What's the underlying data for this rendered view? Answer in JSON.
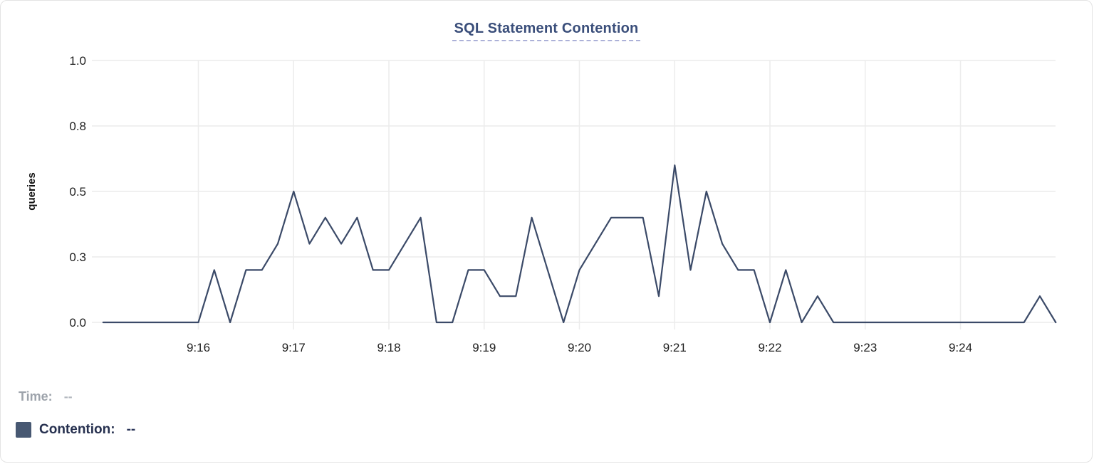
{
  "chart": {
    "title": "SQL Statement Contention"
  },
  "legend": {
    "time_label": "Time:",
    "time_value": "--",
    "series_label": "Contention:",
    "series_value": "--",
    "swatch_color": "#475872"
  },
  "colors": {
    "line": "#3b4a68",
    "grid": "#ececec",
    "title": "#3a4e7a",
    "title_underline": "#acb1d8"
  },
  "chart_data": {
    "type": "line",
    "title": "SQL Statement Contention",
    "xlabel": "",
    "ylabel": "queries",
    "ylim": [
      0,
      1.0
    ],
    "grid": true,
    "legend_position": "bottom-left",
    "y_tick_labels": [
      "0.0",
      "0.3",
      "0.5",
      "0.8",
      "1.0"
    ],
    "y_tick_values": [
      0,
      0.25,
      0.5,
      0.75,
      1.0
    ],
    "x_tick_labels": [
      "9:16",
      "9:17",
      "9:18",
      "9:19",
      "9:20",
      "9:21",
      "9:22",
      "9:23",
      "9:24"
    ],
    "x_start": "9:15:00",
    "x_end": "9:25:00",
    "sample_interval_seconds": 10,
    "series": [
      {
        "name": "Contention",
        "unit": "queries",
        "values": [
          0,
          0,
          0,
          0,
          0,
          0,
          0,
          0.2,
          0,
          0.2,
          0.2,
          0.3,
          0.5,
          0.3,
          0.4,
          0.3,
          0.4,
          0.2,
          0.2,
          0.3,
          0.4,
          0,
          0,
          0.2,
          0.2,
          0.1,
          0.1,
          0.4,
          0.2,
          0,
          0.2,
          0.3,
          0.4,
          0.4,
          0.4,
          0.1,
          0.6,
          0.2,
          0.5,
          0.3,
          0.2,
          0.2,
          0,
          0.2,
          0,
          0.1,
          0,
          0,
          0,
          0,
          0,
          0,
          0,
          0,
          0,
          0,
          0,
          0,
          0,
          0.1,
          0
        ]
      }
    ]
  }
}
